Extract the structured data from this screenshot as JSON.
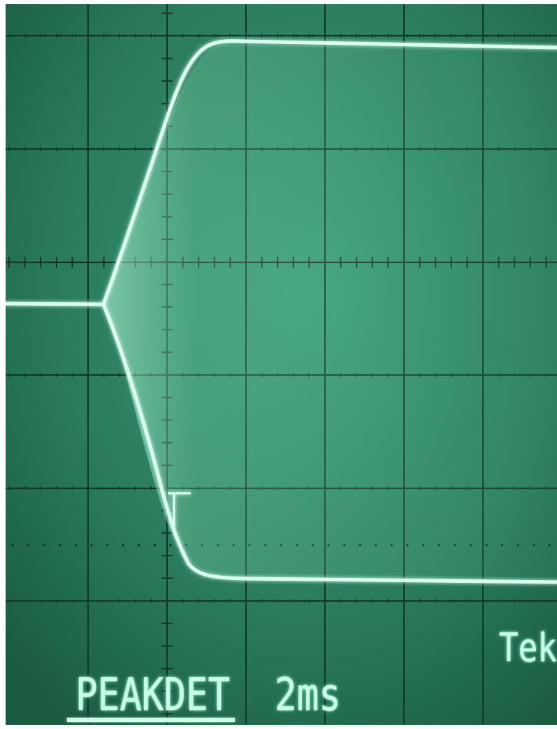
{
  "screen": {
    "mode": "PEAKDET",
    "timebase": "2ms",
    "brand": "Tek"
  },
  "colors": {
    "screen_background": "#2b7a5c",
    "graticule": "#143a2a",
    "trace": "#d9ffef",
    "trace_glow": "#7dffc9"
  },
  "waveform": {
    "description_free": true,
    "graticule_divisions": {
      "horizontal": 10,
      "vertical": 8
    }
  }
}
